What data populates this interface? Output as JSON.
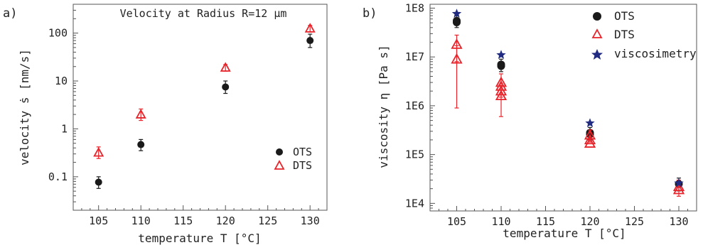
{
  "chart_data": [
    {
      "panel_label": "a)",
      "type": "scatter",
      "title": "Velocity at Radius R=12 µm",
      "xlabel": "temperature T [°C]",
      "ylabel": "velocity ṡ [nm/s]",
      "xlim": [
        102,
        132
      ],
      "ylim": [
        0.02,
        400
      ],
      "y_scale": "log",
      "x_ticks": [
        "105",
        "110",
        "115",
        "120",
        "125",
        "130"
      ],
      "y_ticks": [
        "0.1",
        "1",
        "10",
        "100"
      ],
      "grid": false,
      "legend_position": "center-right",
      "series": [
        {
          "name": "OTS",
          "marker": "filled-circle",
          "color": "#1a1a1a",
          "points": [
            {
              "x": 105,
              "y": 0.077,
              "err_low": 0.057,
              "err_high": 0.1
            },
            {
              "x": 110,
              "y": 0.47,
              "err_low": 0.35,
              "err_high": 0.6
            },
            {
              "x": 120,
              "y": 7.5,
              "err_low": 5.5,
              "err_high": 10
            },
            {
              "x": 130,
              "y": 70,
              "err_low": 50,
              "err_high": 95
            }
          ]
        },
        {
          "name": "DTS",
          "marker": "open-triangle",
          "color": "#e8232a",
          "points": [
            {
              "x": 105,
              "y": 0.32,
              "err_low": 0.24,
              "err_high": 0.42
            },
            {
              "x": 110,
              "y": 2.0,
              "err_low": 1.5,
              "err_high": 2.6
            },
            {
              "x": 120,
              "y": 19,
              "err_low": 16,
              "err_high": 22
            },
            {
              "x": 130,
              "y": 125,
              "err_low": 105,
              "err_high": 145
            }
          ]
        }
      ]
    },
    {
      "panel_label": "b)",
      "type": "scatter",
      "title": "",
      "xlabel": "temperature T [°C]",
      "ylabel": "viscosity η [Pa s]",
      "xlim": [
        102,
        132
      ],
      "ylim": [
        7000,
        120000000
      ],
      "y_scale": "log",
      "x_ticks": [
        "105",
        "110",
        "115",
        "120",
        "125",
        "130"
      ],
      "y_ticks": [
        "1E4",
        "1E5",
        "1E6",
        "1E7",
        "1E8"
      ],
      "grid": false,
      "legend_position": "top-right",
      "series": [
        {
          "name": "OTS",
          "marker": "filled-circle",
          "color": "#1a1a1a",
          "points": [
            {
              "x": 105,
              "y": 55000000,
              "err_low": 40000000,
              "err_high": 70000000
            },
            {
              "x": 105,
              "y": 51000000
            },
            {
              "x": 110,
              "y": 7000000,
              "err_low": 5000000,
              "err_high": 9000000
            },
            {
              "x": 110,
              "y": 6500000
            },
            {
              "x": 120,
              "y": 280000,
              "err_low": 200000,
              "err_high": 360000
            },
            {
              "x": 120,
              "y": 260000
            },
            {
              "x": 130,
              "y": 25000,
              "err_low": 18000,
              "err_high": 33000
            }
          ]
        },
        {
          "name": "DTS",
          "marker": "open-triangle",
          "color": "#e8232a",
          "points": [
            {
              "x": 105,
              "y": 18000000,
              "err_low": 8000000,
              "err_high": 28000000
            },
            {
              "x": 105,
              "y": 9000000,
              "err_low": 900000,
              "err_high": 17000000
            },
            {
              "x": 110,
              "y": 3000000,
              "err_low": 1500000,
              "err_high": 4500000
            },
            {
              "x": 110,
              "y": 2500000
            },
            {
              "x": 110,
              "y": 2000000
            },
            {
              "x": 110,
              "y": 1600000,
              "err_low": 600000,
              "err_high": 2600000
            },
            {
              "x": 120,
              "y": 250000,
              "err_low": 180000,
              "err_high": 320000
            },
            {
              "x": 120,
              "y": 200000
            },
            {
              "x": 120,
              "y": 170000
            },
            {
              "x": 130,
              "y": 22000,
              "err_low": 14000,
              "err_high": 30000
            },
            {
              "x": 130,
              "y": 19000
            }
          ]
        },
        {
          "name": "viscosimetry",
          "marker": "star",
          "color": "#1f2a80",
          "points": [
            {
              "x": 105,
              "y": 77000000
            },
            {
              "x": 110,
              "y": 11000000
            },
            {
              "x": 120,
              "y": 440000
            },
            {
              "x": 130,
              "y": 26000
            }
          ]
        }
      ]
    }
  ]
}
